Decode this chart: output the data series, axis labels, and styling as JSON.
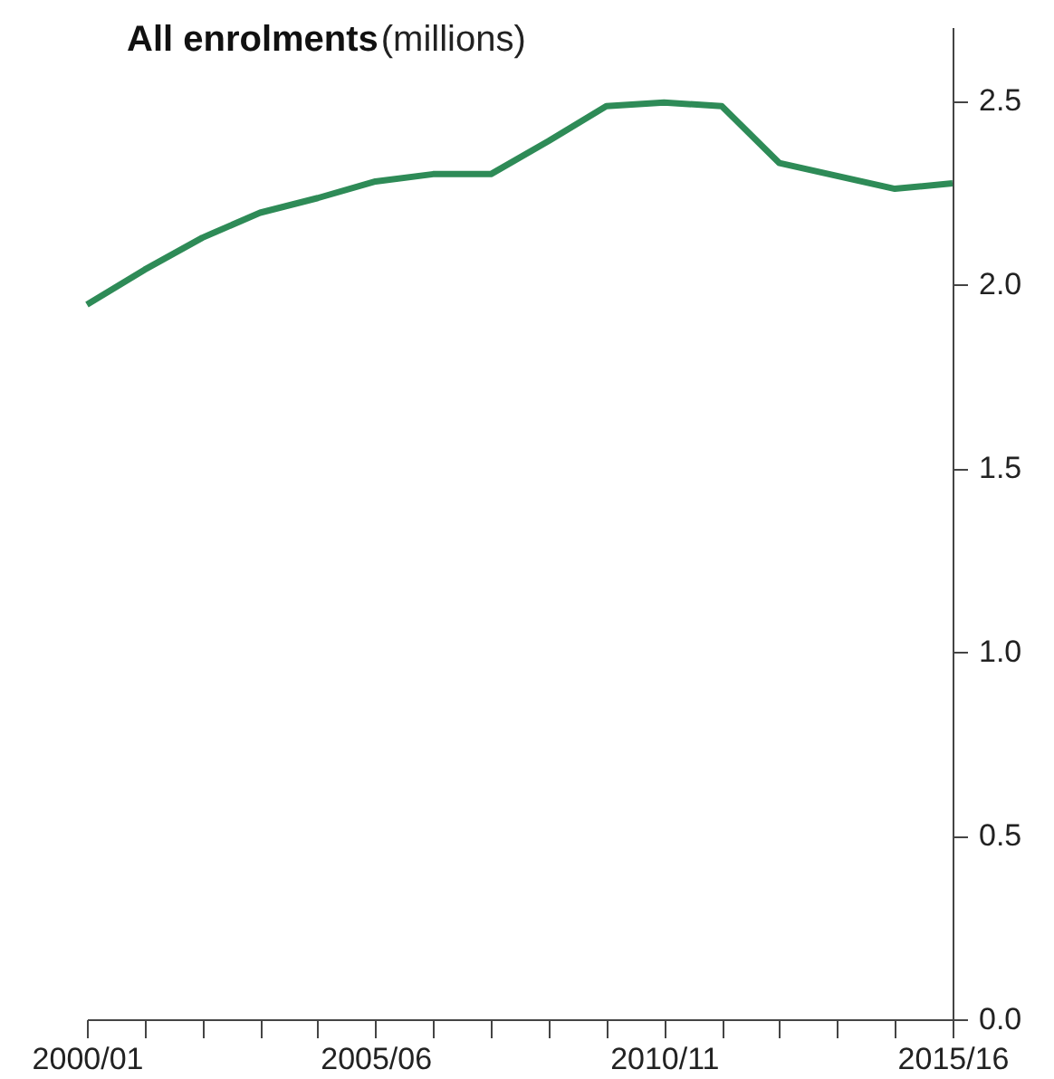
{
  "chart_data": {
    "type": "line",
    "title": "All enrolments",
    "ylabel": "(millions)",
    "categories": [
      "2000/01",
      null,
      null,
      null,
      null,
      "2005/06",
      null,
      null,
      null,
      null,
      "2010/11",
      null,
      null,
      null,
      null,
      "2015/16"
    ],
    "series": [
      {
        "color": "#2e8b57",
        "values": [
          1.945,
          2.04,
          2.127,
          2.195,
          2.235,
          2.28,
          2.3,
          2.3,
          2.39,
          2.485,
          2.495,
          2.485,
          2.33,
          2.295,
          2.26,
          2.275
        ]
      }
    ],
    "ylim": [
      0,
      2.7
    ],
    "yticks": [
      {
        "value": 0,
        "label": "0.0"
      },
      0.5,
      {
        "value": 1,
        "label": "1.0"
      },
      1.5,
      {
        "value": 2,
        "label": "2.0"
      },
      2.5
    ],
    "grid": false,
    "marker": "none",
    "line_style": "solid"
  }
}
